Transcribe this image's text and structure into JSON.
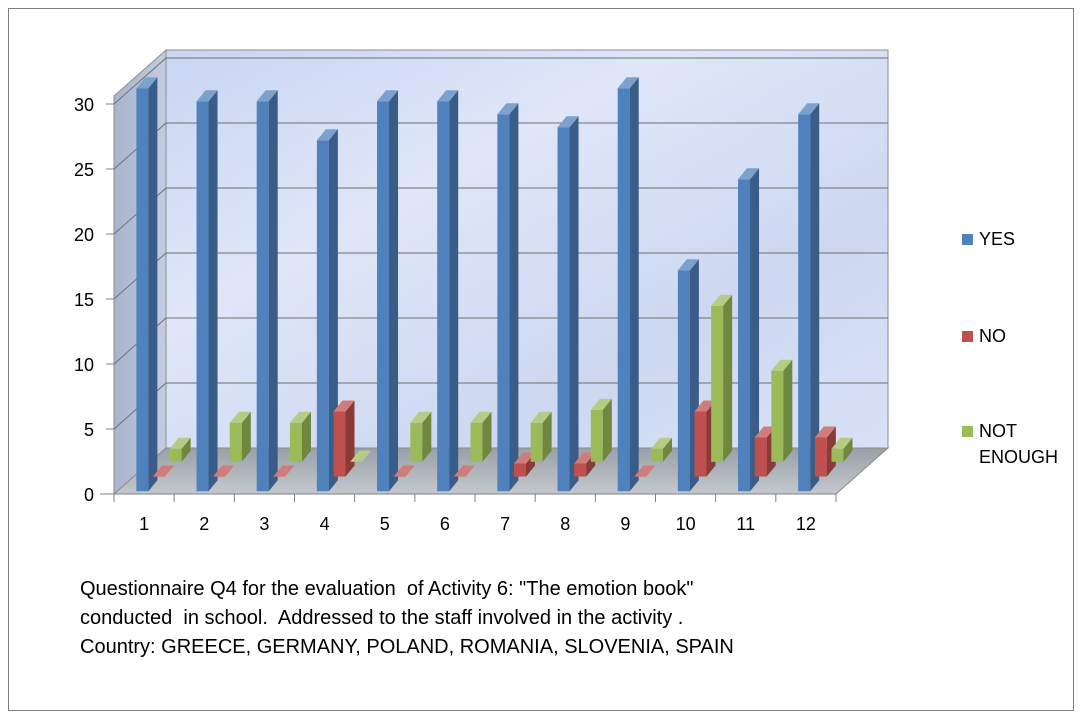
{
  "chart_data": {
    "type": "bar",
    "categories": [
      "1",
      "2",
      "3",
      "4",
      "5",
      "6",
      "7",
      "8",
      "9",
      "10",
      "11",
      "12"
    ],
    "series": [
      {
        "name": "YES",
        "values": [
          31,
          30,
          30,
          27,
          30,
          30,
          29,
          28,
          31,
          17,
          24,
          29
        ]
      },
      {
        "name": "NO",
        "values": [
          0,
          0,
          0,
          5,
          0,
          0,
          1,
          1,
          0,
          5,
          3,
          3
        ]
      },
      {
        "name": "NOT ENOUGH",
        "values": [
          1,
          3,
          3,
          0,
          3,
          3,
          3,
          4,
          1,
          12,
          7,
          1
        ]
      }
    ],
    "ylim": [
      0,
      30
    ],
    "yticks": [
      0,
      5,
      10,
      15,
      20,
      25,
      30
    ],
    "grid": true,
    "legend_position": "right",
    "colors": {
      "YES": "#4f81bd",
      "NO": "#c0504d",
      "NOT ENOUGH": "#9bbb59"
    }
  },
  "legend": {
    "yes": "YES",
    "no": "NO",
    "not_enough_line1": "NOT",
    "not_enough_line2": "ENOUGH"
  },
  "caption": {
    "line1": "Questionnaire Q4 for the evaluation  of Activity 6: \"The emotion book\"",
    "line2": "conducted  in school.  Addressed to the staff involved in the activity .",
    "line3": "Country: GREECE, GERMANY, POLAND, ROMANIA, SLOVENIA, SPAIN"
  }
}
